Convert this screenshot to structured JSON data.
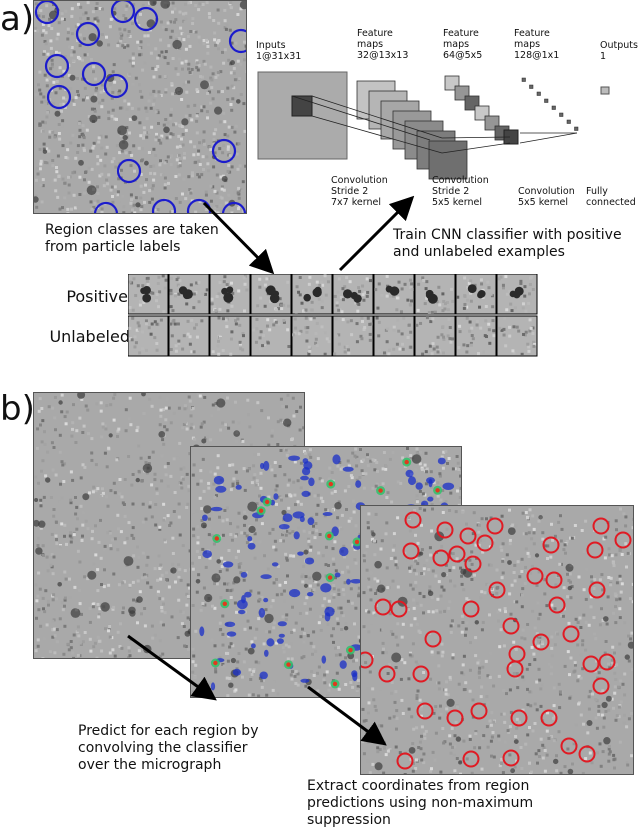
{
  "panels": {
    "a": "a)",
    "b": "b)"
  },
  "network": {
    "layers": [
      {
        "title": "Inputs",
        "shape": "1@31x31"
      },
      {
        "title": "Feature maps",
        "shape": "32@13x13"
      },
      {
        "title": "Feature maps",
        "shape": "64@5x5"
      },
      {
        "title": "Feature maps",
        "shape": "128@1x1"
      },
      {
        "title": "Outputs",
        "shape": "1"
      }
    ],
    "ops": [
      {
        "name": "Convolution",
        "detail1": "Stride 2",
        "detail2": "7x7 kernel"
      },
      {
        "name": "Convolution",
        "detail1": "Stride 2",
        "detail2": "5x5 kernel"
      },
      {
        "name": "Convolution",
        "detail1": "5x5 kernel",
        "detail2": ""
      },
      {
        "name": "Fully",
        "detail1": "connected",
        "detail2": ""
      }
    ]
  },
  "captions": {
    "region_classes": "Region classes are taken from particle labels",
    "train": "Train CNN classifier with positive and unlabeled examples",
    "predict": "Predict for each region by convolving the classifier over the micrograph",
    "extract": "Extract coordinates from region predictions using non-maximum suppression"
  },
  "examples": {
    "positive_label": "Positive",
    "unlabeled_label": "Unlabeled"
  },
  "colors": {
    "label_circle": "#1c1ccc",
    "prediction_circle": "#e01b24",
    "heatmap": "#1a2fc8"
  }
}
